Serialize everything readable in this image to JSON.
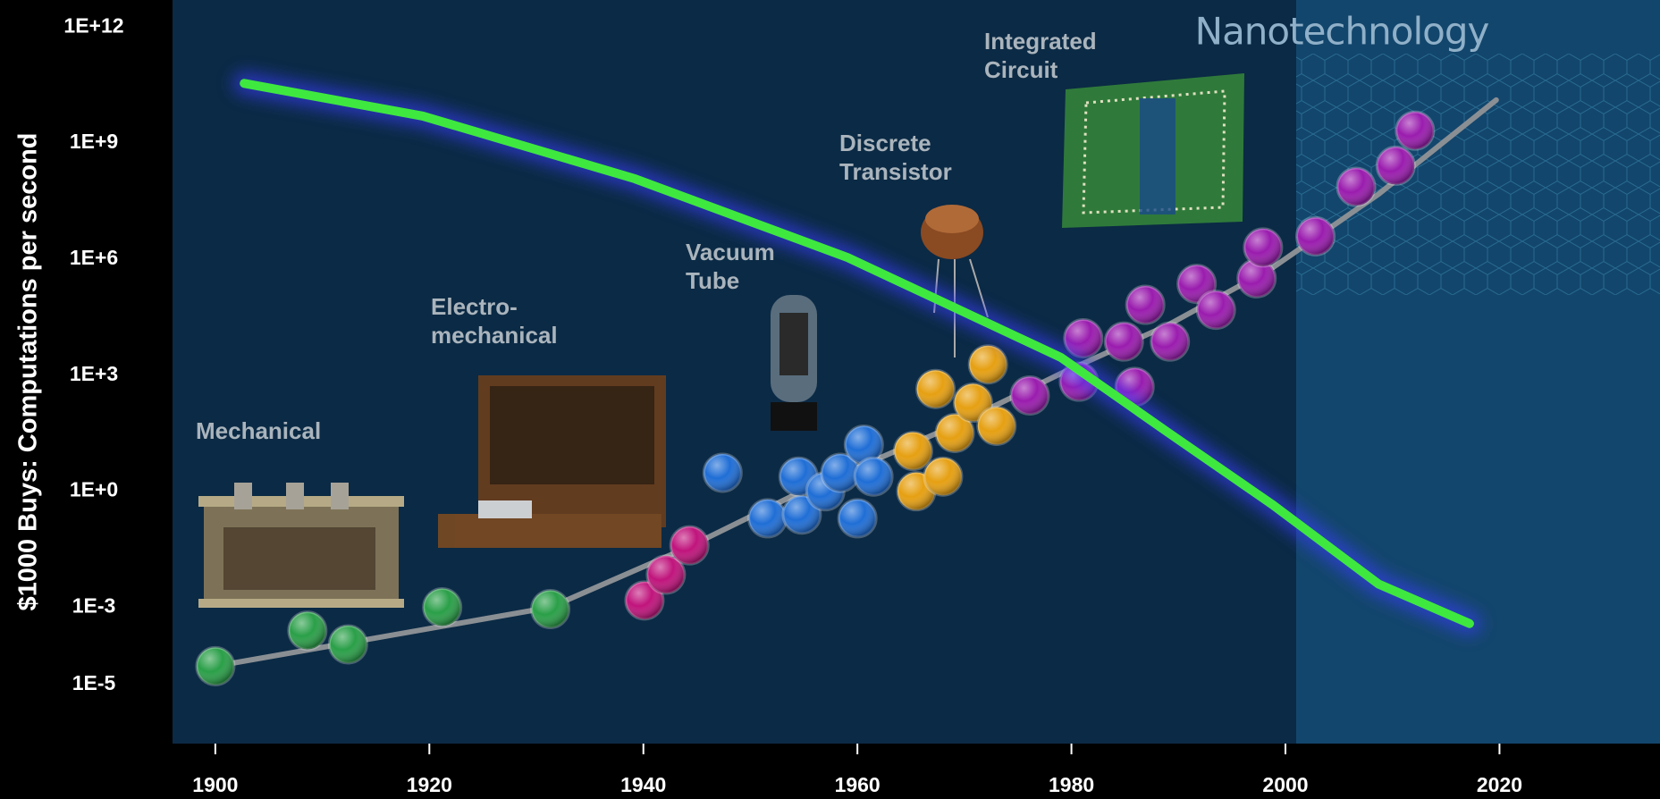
{
  "chart_data": {
    "type": "scatter",
    "y_label": "$1000 Buys: Computations per second",
    "log_y": true,
    "xlim": [
      1896,
      2035
    ],
    "ylim": [
      3e-07,
      5000000000000.0
    ],
    "xticks": [
      1900,
      1920,
      1940,
      1960,
      1980,
      2000,
      2020
    ],
    "yticks": [
      {
        "value": 1e-05,
        "label": "1E-5"
      },
      {
        "value": 0.001,
        "label": "1E-3"
      },
      {
        "value": 1,
        "label": "1E+0"
      },
      {
        "value": 1000,
        "label": "1E+3"
      },
      {
        "value": 1000000,
        "label": "1E+6"
      },
      {
        "value": 1000000000,
        "label": "1E+9"
      },
      {
        "value": 1000000000000,
        "label": "1E+12"
      }
    ],
    "region": {
      "label": "Nanotechnology",
      "x0": 2001
    },
    "series": [
      {
        "type": "line",
        "color": "#8a8f94",
        "x": [
          1900,
          1931.3,
          1944.2,
          1954.1,
          1969,
          1979,
          1988.9,
          1998.8,
          2008.7,
          2019.7
        ],
        "values": [
          3e-05,
          0.001,
          0.036,
          0.8,
          49,
          1100,
          19000,
          600000,
          48000000,
          13000000000
        ]
      },
      {
        "name": [
          "Mechanical"
        ],
        "color": "#2a9f48",
        "x": [
          1900,
          1908.6,
          1912.4,
          1921.2,
          1931.3
        ],
        "values": [
          3e-05,
          0.00025,
          0.00011,
          0.001,
          0.0009
        ]
      },
      {
        "name": [
          "Electro-",
          "mechanical"
        ],
        "color": "#c0147c",
        "x": [
          1940.1,
          1942.1,
          1944.3
        ],
        "values": [
          0.0015,
          0.007,
          0.04
        ]
      },
      {
        "name": [
          "Vacuum",
          "Tube"
        ],
        "color": "#1f6ed6",
        "x": [
          1947.4,
          1951.6,
          1954.8,
          1954.5,
          1957,
          1958.4,
          1960,
          1960.6,
          1961.5
        ],
        "values": [
          3,
          0.2,
          0.25,
          2.4,
          1,
          3,
          0.2,
          16,
          2.4
        ]
      },
      {
        "name": [
          "Discrete",
          "Transistor"
        ],
        "color": "#e6a012",
        "x": [
          1965.2,
          1965.5,
          1968,
          1967.3,
          1969.1,
          1970.8,
          1972.2,
          1973
        ],
        "values": [
          11,
          1,
          2.4,
          440,
          32,
          195,
          1900,
          49
        ]
      },
      {
        "name": [
          "Integrated",
          "Circuit"
        ],
        "color": "#9a1cae",
        "x": [
          1976.1,
          1980.7,
          1981.1,
          1984.9,
          1985.9,
          1986.9,
          1989.2,
          1991.7,
          1993.5,
          1997.3,
          1997.9,
          2002.8,
          2006.6,
          2010.3,
          2012.1
        ],
        "values": [
          300,
          680,
          9000,
          7400,
          500,
          66000,
          7400,
          230000,
          49000,
          320000,
          2000000,
          3900000,
          74000000,
          260000000,
          2100000000
        ]
      },
      {
        "type": "line",
        "color": "#3fe83f",
        "x": [
          1902.7,
          1919.4,
          1939.2,
          1959.1,
          1979,
          1988.9,
          1998.8,
          2008.7,
          2017.2
        ],
        "values": [
          35000000000,
          5000000000,
          120000000,
          1100000,
          2900,
          35,
          0.45,
          0.004,
          0.00038
        ]
      }
    ]
  }
}
